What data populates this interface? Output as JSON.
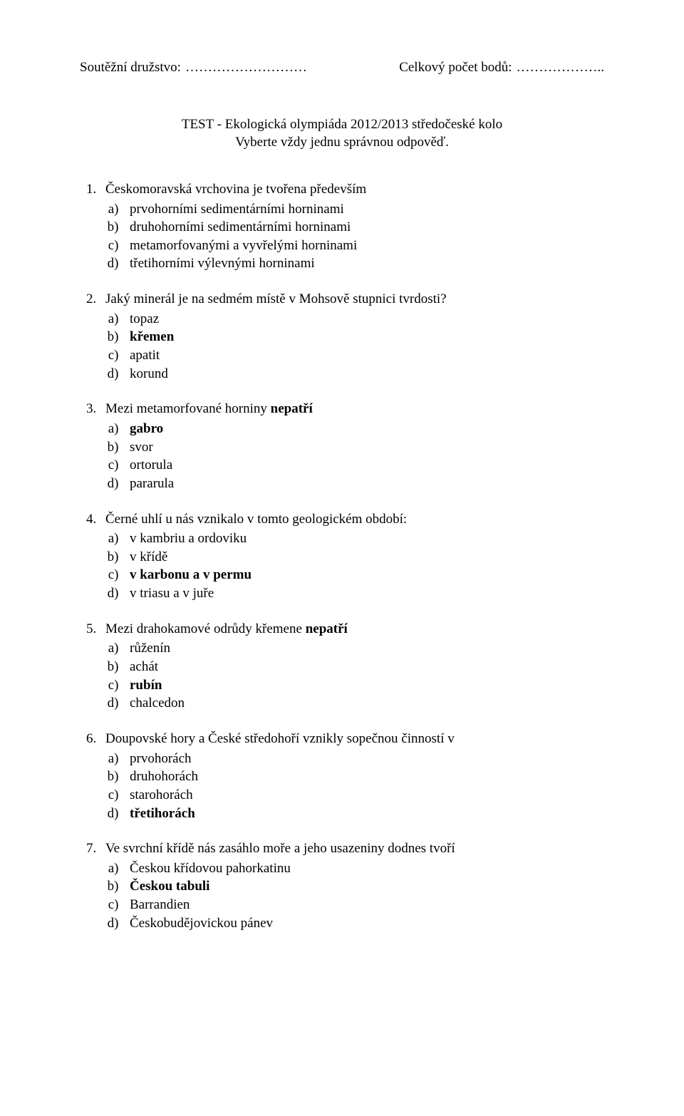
{
  "header": {
    "left_label": "Soutěžní družstvo:",
    "left_dots": "………………………",
    "right_label": "Celkový počet bodů:",
    "right_dots": "……………….."
  },
  "title": {
    "line1": "TEST - Ekologická olympiáda 2012/2013 středočeské kolo",
    "line2": "Vyberte vždy jednu správnou odpověď."
  },
  "questions": [
    {
      "text": "Českomoravská vrchovina je tvořena především",
      "text_bold": false,
      "options": [
        {
          "text": "prvohorními sedimentárními horninami",
          "bold": false
        },
        {
          "text": "druhohorními sedimentárními horninami",
          "bold": false
        },
        {
          "text": "metamorfovanými a vyvřelými horninami",
          "bold": false
        },
        {
          "text": "třetihorními výlevnými horninami",
          "bold": false
        }
      ]
    },
    {
      "text": "Jaký minerál je na sedmém místě v Mohsově stupnici tvrdosti?",
      "text_bold": false,
      "options": [
        {
          "text": "topaz",
          "bold": false
        },
        {
          "text": "křemen",
          "bold": true
        },
        {
          "text": "apatit",
          "bold": false
        },
        {
          "text": "korund",
          "bold": false
        }
      ]
    },
    {
      "text_prefix": "Mezi metamorfované horniny ",
      "text_bold_word": "nepatří",
      "options": [
        {
          "text": "gabro",
          "bold": true
        },
        {
          "text": "svor",
          "bold": false
        },
        {
          "text": "ortorula",
          "bold": false
        },
        {
          "text": "pararula",
          "bold": false
        }
      ]
    },
    {
      "text": "Černé uhlí u nás vznikalo v tomto geologickém období:",
      "text_bold": false,
      "options": [
        {
          "text": "v kambriu a ordoviku",
          "bold": false
        },
        {
          "text": "v křídě",
          "bold": false
        },
        {
          "text": "v karbonu a v permu",
          "bold": true
        },
        {
          "text": "v triasu a v juře",
          "bold": false
        }
      ]
    },
    {
      "text_prefix": "Mezi drahokamové odrůdy křemene ",
      "text_bold_word": "nepatří",
      "options": [
        {
          "text": "růženín",
          "bold": false
        },
        {
          "text": "achát",
          "bold": false
        },
        {
          "text": "rubín",
          "bold": true
        },
        {
          "text": "chalcedon",
          "bold": false
        }
      ]
    },
    {
      "text": "Doupovské hory a České středohoří vznikly sopečnou činností v",
      "text_bold": false,
      "options": [
        {
          "text": "prvohorách",
          "bold": false
        },
        {
          "text": "druhohorách",
          "bold": false
        },
        {
          "text": "starohorách",
          "bold": false
        },
        {
          "text": "třetihorách",
          "bold": true
        }
      ]
    },
    {
      "text": "Ve svrchní křídě nás zasáhlo moře a jeho usazeniny dodnes tvoří",
      "text_bold": false,
      "options": [
        {
          "text": "Českou křídovou pahorkatinu",
          "bold": false
        },
        {
          "text": "Českou tabuli",
          "bold": true
        },
        {
          "text": "Barrandien",
          "bold": false
        },
        {
          "text": "Českobudějovickou pánev",
          "bold": false
        }
      ]
    }
  ]
}
